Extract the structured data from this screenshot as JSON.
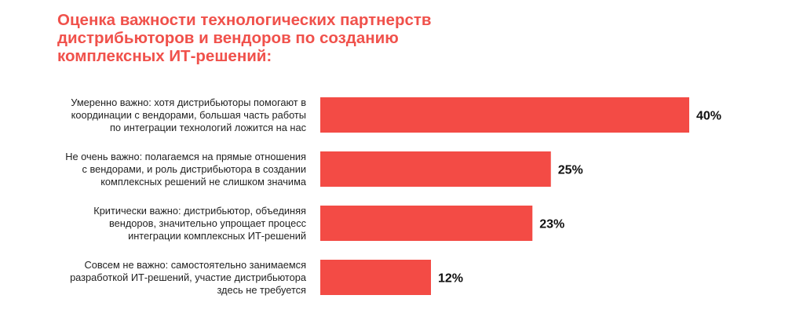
{
  "title_lines": [
    "Оценка важности технологических партнерств",
    "дистрибьюторов и вендоров по созданию",
    "комплексных ИТ-решений:"
  ],
  "colors": {
    "title": "#f0514b",
    "bar": "#f34b45",
    "text": "#222222"
  },
  "chart_data": {
    "type": "bar",
    "orientation": "horizontal",
    "title": "Оценка важности технологических партнерств дистрибьюторов и вендоров по созданию комплексных ИТ-решений:",
    "unit": "%",
    "categories": [
      [
        "Умеренно важно: хотя дистрибьюторы помогают в",
        "координации с вендорами, большая часть работы",
        "по интеграции технологий ложится на нас"
      ],
      [
        "Не очень важно: полагаемся на прямые отношения",
        "с вендорами, и роль дистрибьютора в создании",
        "комплексных решений не слишком значима"
      ],
      [
        "Критически важно: дистрибьютор, объединяя",
        "вендоров, значительно упрощает процесс",
        "интеграции комплексных ИТ-решений"
      ],
      [
        "Совсем не важно: самостоятельно занимаемся",
        "разработкой ИТ-решений, участие дистрибьютора",
        "здесь не требуется"
      ]
    ],
    "values": [
      40,
      25,
      23,
      12
    ],
    "value_labels": [
      "40%",
      "25%",
      "23%",
      "12%"
    ],
    "xlim": [
      0,
      40
    ],
    "grid": false,
    "legend": "none"
  }
}
